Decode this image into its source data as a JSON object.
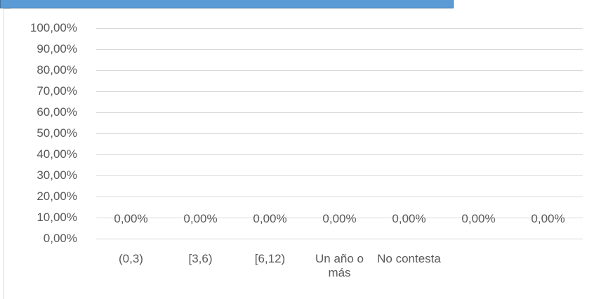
{
  "chart_data": {
    "type": "bar",
    "categories": [
      "(0,3)",
      "[3,6)",
      "[6,12)",
      "Un año o más",
      "No contesta",
      null,
      null
    ],
    "values": [
      0,
      0,
      0,
      0,
      0,
      0,
      0
    ],
    "value_labels": [
      "0,00%",
      "0,00%",
      "0,00%",
      "0,00%",
      "0,00%",
      "0,00%",
      "0,00%"
    ],
    "ylim": [
      0,
      100
    ],
    "yticks": [
      {
        "value": 0,
        "label": "0,00%"
      },
      {
        "value": 10,
        "label": "10,00%"
      },
      {
        "value": 20,
        "label": "20,00%"
      },
      {
        "value": 30,
        "label": "30,00%"
      },
      {
        "value": 40,
        "label": "40,00%"
      },
      {
        "value": 50,
        "label": "50,00%"
      },
      {
        "value": 60,
        "label": "60,00%"
      },
      {
        "value": 70,
        "label": "70,00%"
      },
      {
        "value": 80,
        "label": "80,00%"
      },
      {
        "value": 90,
        "label": "90,00%"
      },
      {
        "value": 100,
        "label": "100,00%"
      }
    ],
    "grid": true,
    "color": "#5b9bd5"
  }
}
